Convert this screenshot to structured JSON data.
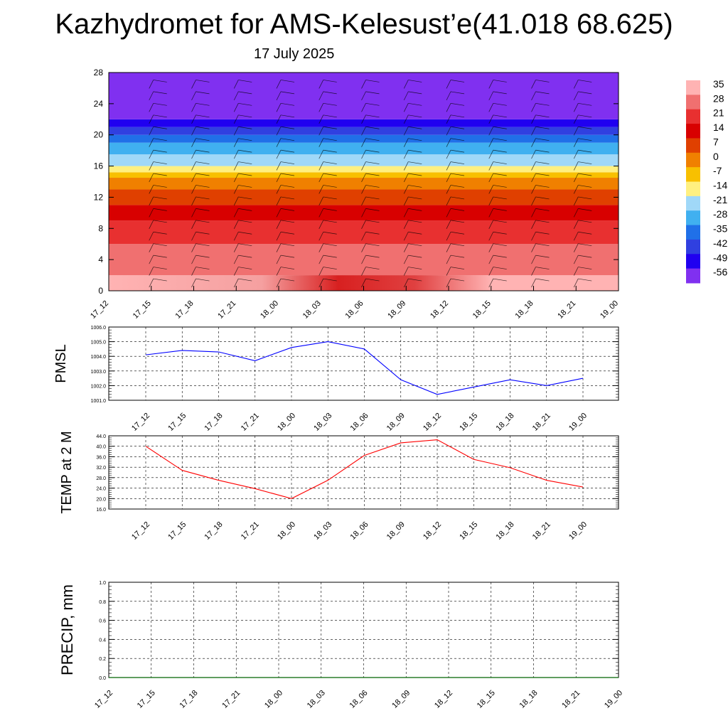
{
  "title": "Kazhydromet for AMS-Kelesust’e(41.018 68.625)",
  "subtitle": "17 July 2025",
  "colorbar": {
    "labels": [
      "35",
      "28",
      "21",
      "14",
      "7",
      "0",
      "-7",
      "-14",
      "-21",
      "-28",
      "-35",
      "-42",
      "-49",
      "-56"
    ],
    "colors": [
      "#ffb3b3",
      "#f07070",
      "#e83030",
      "#d80000",
      "#e04000",
      "#f08000",
      "#f8c000",
      "#fff080",
      "#a0d8f8",
      "#40b0f0",
      "#2070e8",
      "#3040e0",
      "#2000f0",
      "#8030f0"
    ]
  },
  "chart_data": [
    {
      "type": "heatmap",
      "name": "vertical-profile",
      "x_ticks": [
        "17_12",
        "17_15",
        "17_18",
        "17_21",
        "18_00",
        "18_03",
        "18_06",
        "18_09",
        "18_12",
        "18_15",
        "18_18",
        "18_21",
        "19_00"
      ],
      "y_ticks": [
        "0",
        "4",
        "8",
        "12",
        "16",
        "20",
        "24",
        "28"
      ],
      "ylim": [
        0,
        28
      ],
      "bands": [
        {
          "from": 0,
          "to": 2,
          "value": 35
        },
        {
          "from": 2,
          "to": 6,
          "value": 28
        },
        {
          "from": 6,
          "to": 9,
          "value": 21
        },
        {
          "from": 9,
          "to": 11,
          "value": 14
        },
        {
          "from": 11,
          "to": 13,
          "value": 7
        },
        {
          "from": 13,
          "to": 14.5,
          "value": 0
        },
        {
          "from": 14.5,
          "to": 15.2,
          "value": -7
        },
        {
          "from": 15.2,
          "to": 16,
          "value": -14
        },
        {
          "from": 16,
          "to": 17.5,
          "value": -21
        },
        {
          "from": 17.5,
          "to": 19,
          "value": -28
        },
        {
          "from": 19,
          "to": 20,
          "value": -35
        },
        {
          "from": 20,
          "to": 21,
          "value": -42
        },
        {
          "from": 21,
          "to": 22,
          "value": -49
        },
        {
          "from": 22,
          "to": 28,
          "value": -56
        }
      ]
    },
    {
      "type": "line",
      "name": "pmsl",
      "ylabel": "PMSL",
      "x": [
        "17_12",
        "17_15",
        "17_18",
        "17_21",
        "18_00",
        "18_03",
        "18_06",
        "18_09",
        "18_12",
        "18_15",
        "18_18",
        "18_21",
        "19_00"
      ],
      "y_ticks": [
        "1001.0",
        "1002.0",
        "1003.0",
        "1004.0",
        "1005.0",
        "1006.0"
      ],
      "ylim": [
        1001.0,
        1006.0
      ],
      "grid": true,
      "series": [
        {
          "color": "#0000ff",
          "values": [
            1004.1,
            1004.4,
            1004.3,
            1003.7,
            1004.6,
            1005.0,
            1004.5,
            1002.4,
            1001.4,
            1001.9,
            1002.4,
            1002.0,
            1002.5
          ]
        }
      ]
    },
    {
      "type": "line",
      "name": "temp2m",
      "ylabel": "TEMP at 2 M",
      "x": [
        "17_12",
        "17_15",
        "17_18",
        "17_21",
        "18_00",
        "18_03",
        "18_06",
        "18_09",
        "18_12",
        "18_15",
        "18_18",
        "18_21",
        "19_00"
      ],
      "y_ticks": [
        "16.0",
        "20.0",
        "24.0",
        "28.0",
        "32.0",
        "36.0",
        "40.0",
        "44.0"
      ],
      "ylim": [
        16.0,
        44.0
      ],
      "grid": true,
      "series": [
        {
          "color": "#ff0000",
          "values": [
            40.0,
            30.8,
            27.0,
            23.8,
            20.0,
            27.0,
            36.5,
            41.3,
            42.5,
            35.0,
            31.8,
            27.0,
            24.4
          ]
        }
      ]
    },
    {
      "type": "line",
      "name": "precip",
      "ylabel": "PRECIP, mm",
      "x": [
        "17_12",
        "17_15",
        "17_18",
        "17_21",
        "18_00",
        "18_03",
        "18_06",
        "18_09",
        "18_12",
        "18_15",
        "18_18",
        "18_21",
        "19_00"
      ],
      "y_ticks": [
        "0.0",
        "0.2",
        "0.4",
        "0.6",
        "0.8",
        "1.0"
      ],
      "ylim": [
        0.0,
        1.0
      ],
      "grid": true,
      "series": [
        {
          "color": "#006400",
          "values": [
            0,
            0,
            0,
            0,
            0,
            0,
            0,
            0,
            0,
            0,
            0,
            0,
            0
          ]
        }
      ]
    }
  ]
}
